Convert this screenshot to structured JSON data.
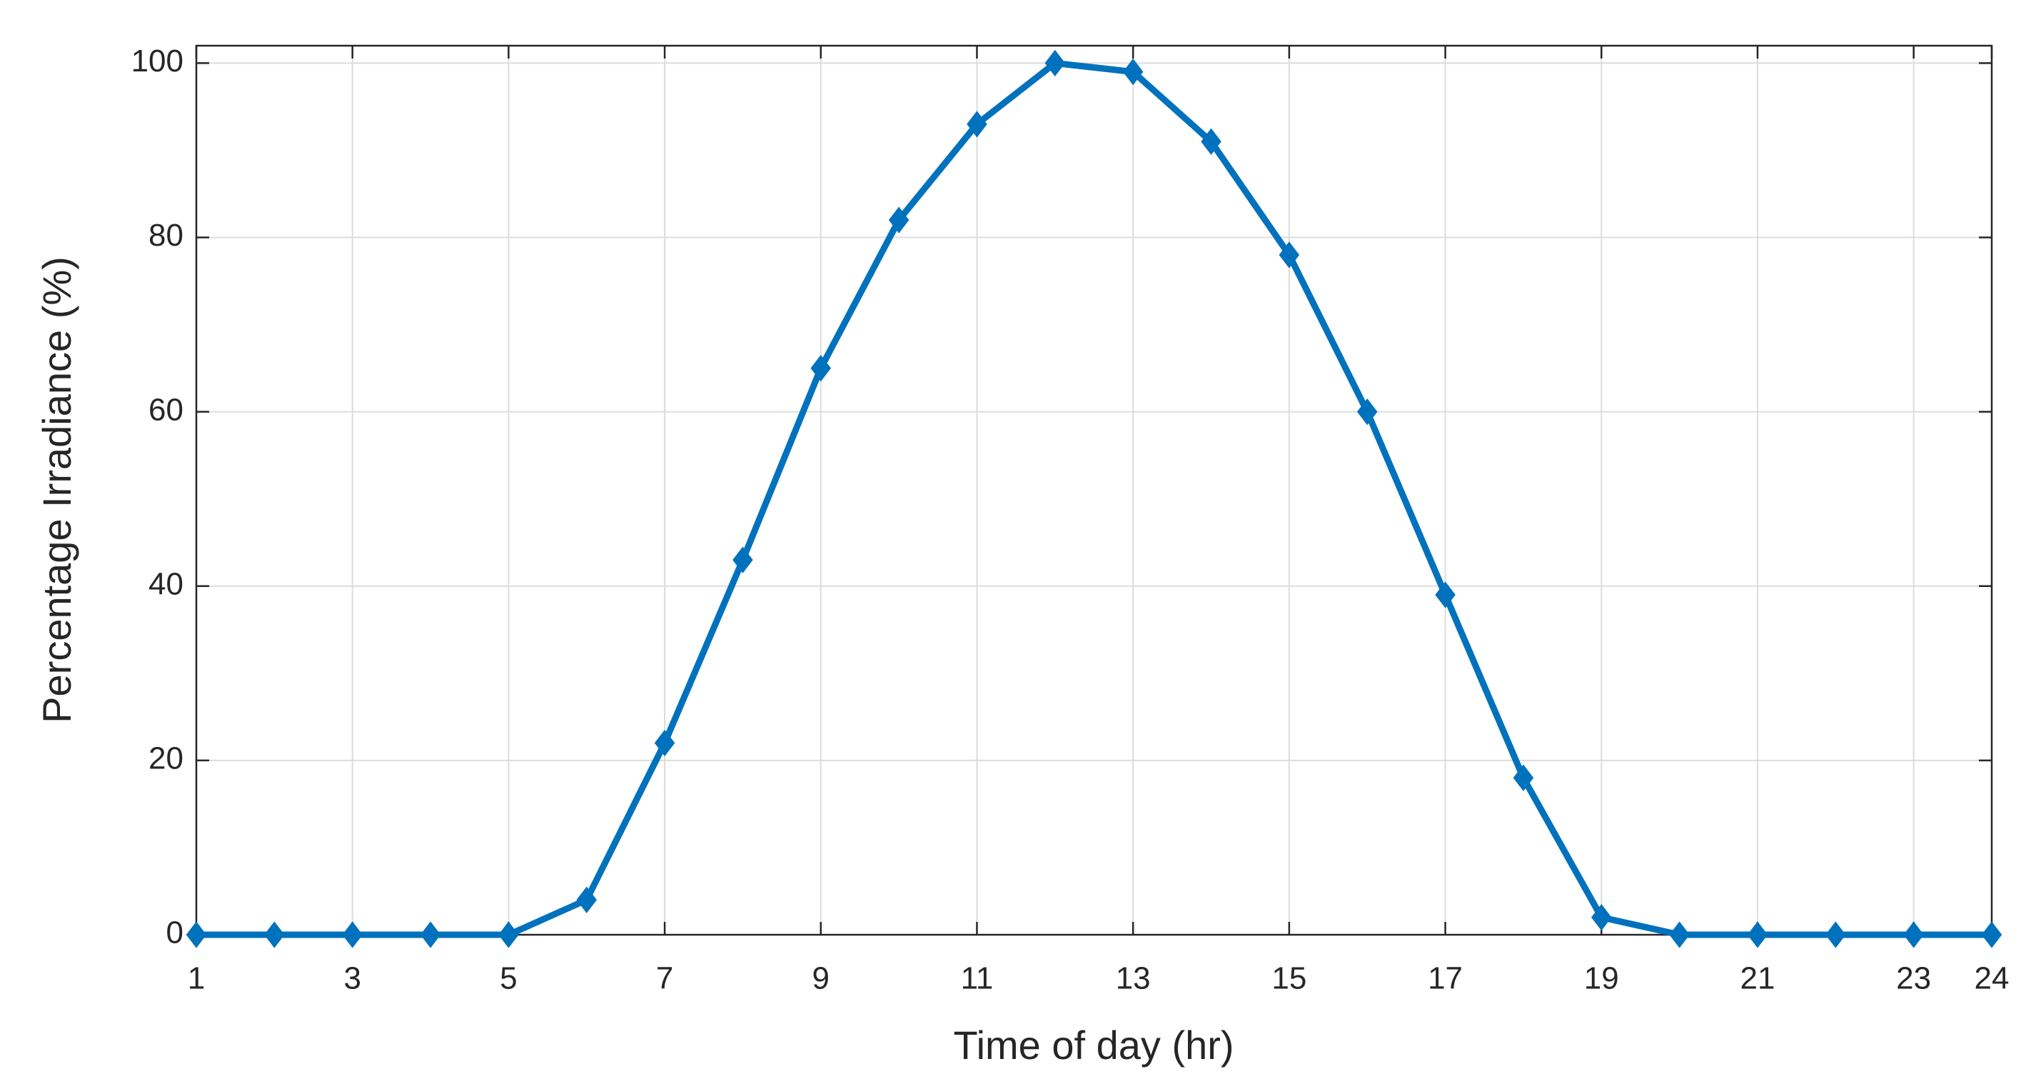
{
  "chart_data": {
    "type": "line",
    "x_label": "Time of day (hr)",
    "y_label": "Percentage Irradiance (%)",
    "x": [
      1,
      2,
      3,
      4,
      5,
      6,
      7,
      8,
      9,
      10,
      11,
      12,
      13,
      14,
      15,
      16,
      17,
      18,
      19,
      20,
      21,
      22,
      23,
      24
    ],
    "series": [
      {
        "color": "#0072bd",
        "marker": "diamond",
        "values": [
          0,
          0,
          0,
          0,
          0,
          4,
          22,
          43,
          65,
          82,
          93,
          100,
          99,
          91,
          78,
          60,
          39,
          18,
          2,
          0,
          0,
          0,
          0,
          0
        ]
      }
    ],
    "xlim": [
      1,
      24
    ],
    "ylim": [
      0,
      102
    ],
    "xticks": [
      1,
      3,
      5,
      7,
      9,
      11,
      13,
      15,
      17,
      19,
      21,
      23,
      24
    ],
    "yticks": [
      0,
      20,
      40,
      60,
      80,
      100
    ],
    "grid": true
  }
}
